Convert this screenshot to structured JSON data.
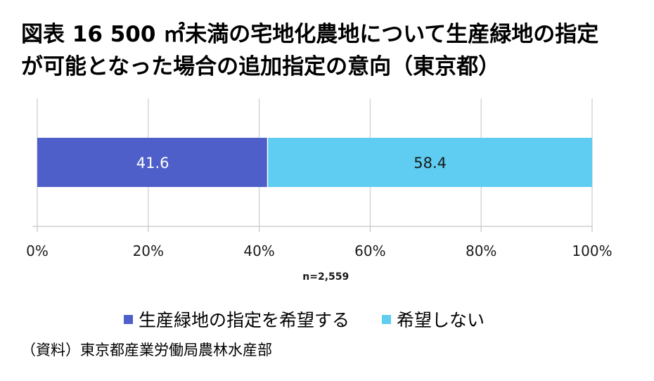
{
  "title": {
    "line1": "図表 16 500 ㎡未満の宅地化農地について生産緑地の指定",
    "line2": "が可能となった場合の追加指定の意向（東京都）"
  },
  "chart_data": {
    "type": "bar",
    "orientation": "horizontal",
    "stacked": true,
    "categories": [
      ""
    ],
    "series": [
      {
        "name": "生産緑地の指定を希望する",
        "values": [
          41.6
        ],
        "color": "#4e5fc9"
      },
      {
        "name": "希望しない",
        "values": [
          58.4
        ],
        "color": "#5fcdf1"
      }
    ],
    "xlim": [
      0,
      100
    ],
    "xticks": [
      "0%",
      "20%",
      "40%",
      "60%",
      "80%",
      "100%"
    ],
    "note": "n=2,559",
    "grid": true,
    "legend_position": "bottom"
  },
  "source": "（資料）東京都産業労働局農林水産部"
}
